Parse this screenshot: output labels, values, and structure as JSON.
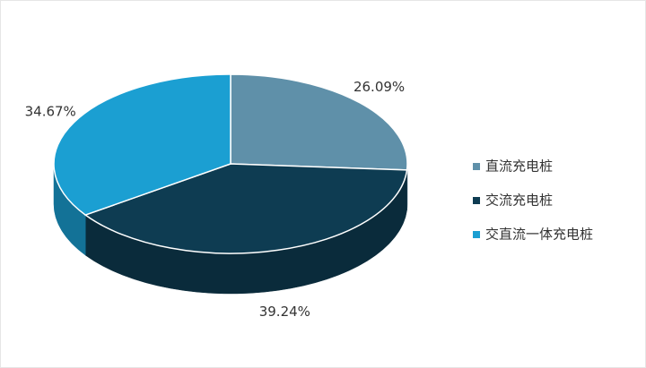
{
  "chart_data": {
    "type": "pie3d",
    "categories": [
      "直流充电桩",
      "交流充电桩",
      "交直流一体充电桩"
    ],
    "values": [
      26.09,
      39.24,
      34.67
    ],
    "value_labels": [
      "26.09%",
      "39.24%",
      "34.67%"
    ],
    "colors": [
      "#5f90a9",
      "#0e3c52",
      "#1b9fd2"
    ],
    "legend": "right"
  }
}
